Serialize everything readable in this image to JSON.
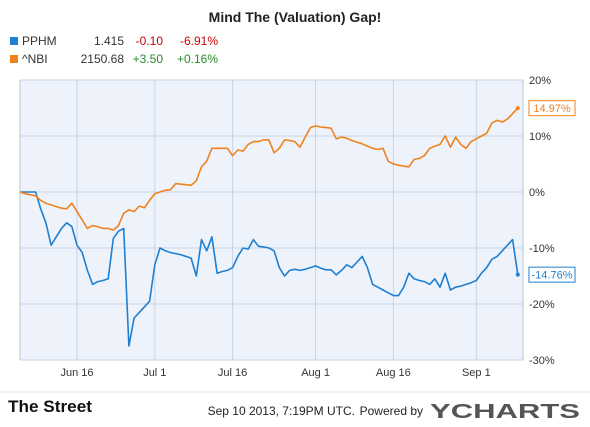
{
  "title": "Mind The (Valuation) Gap!",
  "legend": [
    {
      "name": "PPHM",
      "value": "1.415",
      "change": "-0.10",
      "pct": "-6.91%",
      "color": "#1f7fd0",
      "change_color": "#cc0000"
    },
    {
      "name": "^NBI",
      "value": "2150.68",
      "change": "+3.50",
      "pct": "+0.16%",
      "color": "#f0821e",
      "change_color": "#2a8a2a"
    }
  ],
  "footer": {
    "brand": "The Street",
    "timestamp": "Sep 10 2013, 7:19PM UTC.",
    "powered_by": "Powered by",
    "ycharts": "YCHARTS"
  },
  "colors": {
    "plot_bg": "#eef3fb",
    "grid": "#c8d3e6",
    "pphm": "#1f7fd0",
    "nbi": "#f0821e"
  },
  "chart_data": {
    "type": "line",
    "title": "Mind The (Valuation) Gap!",
    "xlabel": "",
    "ylabel": "",
    "ylim": [
      -30,
      20
    ],
    "yticks": [
      20,
      10,
      0,
      -10,
      -20,
      -30
    ],
    "ytick_labels": [
      "20%",
      "10%",
      "0%",
      "-10%",
      "-20%",
      "-30%"
    ],
    "xlim": [
      "2013-06-05",
      "2013-09-10"
    ],
    "xticks": [
      "2013-06-16",
      "2013-07-01",
      "2013-07-16",
      "2013-08-01",
      "2013-08-16",
      "2013-09-01"
    ],
    "xtick_labels": [
      "Jun 16",
      "Jul 1",
      "Jul 16",
      "Aug 1",
      "Aug 16",
      "Sep 1"
    ],
    "grid": true,
    "legend_position": "top-left",
    "series": [
      {
        "name": "PPHM",
        "end_label": "-14.76%",
        "points": [
          [
            "2013-06-05",
            0.0
          ],
          [
            "2013-06-06",
            0.0
          ],
          [
            "2013-06-07",
            0.0
          ],
          [
            "2013-06-08",
            0.0
          ],
          [
            "2013-06-09",
            -3.0
          ],
          [
            "2013-06-10",
            -5.5
          ],
          [
            "2013-06-11",
            -9.5
          ],
          [
            "2013-06-12",
            -8.0
          ],
          [
            "2013-06-13",
            -6.5
          ],
          [
            "2013-06-14",
            -5.5
          ],
          [
            "2013-06-15",
            -6.2
          ],
          [
            "2013-06-16",
            -9.5
          ],
          [
            "2013-06-17",
            -10.8
          ],
          [
            "2013-06-18",
            -14.0
          ],
          [
            "2013-06-19",
            -16.5
          ],
          [
            "2013-06-20",
            -16.0
          ],
          [
            "2013-06-21",
            -15.8
          ],
          [
            "2013-06-22",
            -15.5
          ],
          [
            "2013-06-23",
            -8.3
          ],
          [
            "2013-06-24",
            -7.0
          ],
          [
            "2013-06-25",
            -6.5
          ],
          [
            "2013-06-26",
            -27.5
          ],
          [
            "2013-06-27",
            -22.5
          ],
          [
            "2013-06-28",
            -21.5
          ],
          [
            "2013-06-29",
            -20.5
          ],
          [
            "2013-06-30",
            -19.5
          ],
          [
            "2013-07-01",
            -13.0
          ],
          [
            "2013-07-02",
            -10.0
          ],
          [
            "2013-07-03",
            -10.5
          ],
          [
            "2013-07-04",
            -10.8
          ],
          [
            "2013-07-05",
            -11.0
          ],
          [
            "2013-07-06",
            -11.2
          ],
          [
            "2013-07-07",
            -11.5
          ],
          [
            "2013-07-08",
            -11.8
          ],
          [
            "2013-07-09",
            -15.0
          ],
          [
            "2013-07-10",
            -8.5
          ],
          [
            "2013-07-11",
            -10.5
          ],
          [
            "2013-07-12",
            -8.0
          ],
          [
            "2013-07-13",
            -14.5
          ],
          [
            "2013-07-14",
            -14.2
          ],
          [
            "2013-07-15",
            -14.0
          ],
          [
            "2013-07-16",
            -13.5
          ],
          [
            "2013-07-17",
            -11.5
          ],
          [
            "2013-07-18",
            -10.0
          ],
          [
            "2013-07-19",
            -10.2
          ],
          [
            "2013-07-20",
            -8.5
          ],
          [
            "2013-07-21",
            -9.7
          ],
          [
            "2013-07-22",
            -9.8
          ],
          [
            "2013-07-23",
            -10.0
          ],
          [
            "2013-07-24",
            -10.5
          ],
          [
            "2013-07-25",
            -13.5
          ],
          [
            "2013-07-26",
            -15.0
          ],
          [
            "2013-07-27",
            -14.0
          ],
          [
            "2013-07-28",
            -13.8
          ],
          [
            "2013-07-29",
            -14.0
          ],
          [
            "2013-07-30",
            -13.8
          ],
          [
            "2013-07-31",
            -13.5
          ],
          [
            "2013-08-01",
            -13.2
          ],
          [
            "2013-08-02",
            -13.6
          ],
          [
            "2013-08-03",
            -13.9
          ],
          [
            "2013-08-04",
            -13.9
          ],
          [
            "2013-08-05",
            -14.8
          ],
          [
            "2013-08-06",
            -14.0
          ],
          [
            "2013-08-07",
            -13.0
          ],
          [
            "2013-08-08",
            -13.5
          ],
          [
            "2013-08-09",
            -12.5
          ],
          [
            "2013-08-10",
            -11.5
          ],
          [
            "2013-08-11",
            -13.5
          ],
          [
            "2013-08-12",
            -16.5
          ],
          [
            "2013-08-13",
            -17.0
          ],
          [
            "2013-08-14",
            -17.5
          ],
          [
            "2013-08-15",
            -18.0
          ],
          [
            "2013-08-16",
            -18.5
          ],
          [
            "2013-08-17",
            -18.5
          ],
          [
            "2013-08-18",
            -17.0
          ],
          [
            "2013-08-19",
            -14.5
          ],
          [
            "2013-08-20",
            -15.5
          ],
          [
            "2013-08-21",
            -15.8
          ],
          [
            "2013-08-22",
            -16.0
          ],
          [
            "2013-08-23",
            -16.5
          ],
          [
            "2013-08-24",
            -15.5
          ],
          [
            "2013-08-25",
            -17.0
          ],
          [
            "2013-08-26",
            -14.5
          ],
          [
            "2013-08-27",
            -17.5
          ],
          [
            "2013-08-28",
            -17.0
          ],
          [
            "2013-08-29",
            -16.8
          ],
          [
            "2013-08-30",
            -16.5
          ],
          [
            "2013-08-31",
            -16.2
          ],
          [
            "2013-09-01",
            -15.8
          ],
          [
            "2013-09-02",
            -14.5
          ],
          [
            "2013-09-03",
            -13.5
          ],
          [
            "2013-09-04",
            -12.0
          ],
          [
            "2013-09-05",
            -11.5
          ],
          [
            "2013-09-06",
            -10.5
          ],
          [
            "2013-09-07",
            -9.5
          ],
          [
            "2013-09-08",
            -8.5
          ],
          [
            "2013-09-09",
            -14.76
          ]
        ]
      },
      {
        "name": "^NBI",
        "end_label": "14.97%",
        "points": [
          [
            "2013-06-05",
            0.0
          ],
          [
            "2013-06-06",
            -0.3
          ],
          [
            "2013-06-07",
            -0.5
          ],
          [
            "2013-06-08",
            -0.7
          ],
          [
            "2013-06-09",
            -1.5
          ],
          [
            "2013-06-10",
            -2.0
          ],
          [
            "2013-06-11",
            -2.3
          ],
          [
            "2013-06-12",
            -2.6
          ],
          [
            "2013-06-13",
            -2.9
          ],
          [
            "2013-06-14",
            -3.0
          ],
          [
            "2013-06-15",
            -2.0
          ],
          [
            "2013-06-16",
            -3.5
          ],
          [
            "2013-06-17",
            -5.0
          ],
          [
            "2013-06-18",
            -6.5
          ],
          [
            "2013-06-19",
            -6.0
          ],
          [
            "2013-06-20",
            -6.2
          ],
          [
            "2013-06-21",
            -6.5
          ],
          [
            "2013-06-22",
            -6.5
          ],
          [
            "2013-06-23",
            -6.8
          ],
          [
            "2013-06-24",
            -6.0
          ],
          [
            "2013-06-25",
            -3.8
          ],
          [
            "2013-06-26",
            -3.2
          ],
          [
            "2013-06-27",
            -3.5
          ],
          [
            "2013-06-28",
            -2.5
          ],
          [
            "2013-06-29",
            -2.8
          ],
          [
            "2013-06-30",
            -1.5
          ],
          [
            "2013-07-01",
            -0.3
          ],
          [
            "2013-07-02",
            0.0
          ],
          [
            "2013-07-03",
            0.3
          ],
          [
            "2013-07-04",
            0.4
          ],
          [
            "2013-07-05",
            1.5
          ],
          [
            "2013-07-06",
            1.4
          ],
          [
            "2013-07-07",
            1.3
          ],
          [
            "2013-07-08",
            1.2
          ],
          [
            "2013-07-09",
            2.0
          ],
          [
            "2013-07-10",
            4.5
          ],
          [
            "2013-07-11",
            5.5
          ],
          [
            "2013-07-12",
            7.8
          ],
          [
            "2013-07-13",
            7.8
          ],
          [
            "2013-07-14",
            7.8
          ],
          [
            "2013-07-15",
            7.8
          ],
          [
            "2013-07-16",
            6.5
          ],
          [
            "2013-07-17",
            7.5
          ],
          [
            "2013-07-18",
            7.3
          ],
          [
            "2013-07-19",
            8.5
          ],
          [
            "2013-07-20",
            9.0
          ],
          [
            "2013-07-21",
            9.0
          ],
          [
            "2013-07-22",
            9.3
          ],
          [
            "2013-07-23",
            9.3
          ],
          [
            "2013-07-24",
            7.0
          ],
          [
            "2013-07-25",
            7.8
          ],
          [
            "2013-07-26",
            9.3
          ],
          [
            "2013-07-27",
            9.2
          ],
          [
            "2013-07-28",
            9.0
          ],
          [
            "2013-07-29",
            8.0
          ],
          [
            "2013-07-30",
            9.8
          ],
          [
            "2013-07-31",
            11.5
          ],
          [
            "2013-08-01",
            11.8
          ],
          [
            "2013-08-02",
            11.6
          ],
          [
            "2013-08-03",
            11.5
          ],
          [
            "2013-08-04",
            11.4
          ],
          [
            "2013-08-05",
            9.5
          ],
          [
            "2013-08-06",
            9.8
          ],
          [
            "2013-08-07",
            9.6
          ],
          [
            "2013-08-08",
            9.2
          ],
          [
            "2013-08-09",
            8.9
          ],
          [
            "2013-08-10",
            8.6
          ],
          [
            "2013-08-11",
            8.2
          ],
          [
            "2013-08-12",
            7.8
          ],
          [
            "2013-08-13",
            7.6
          ],
          [
            "2013-08-14",
            7.8
          ],
          [
            "2013-08-15",
            5.5
          ],
          [
            "2013-08-16",
            5.0
          ],
          [
            "2013-08-17",
            4.8
          ],
          [
            "2013-08-18",
            4.6
          ],
          [
            "2013-08-19",
            4.5
          ],
          [
            "2013-08-20",
            5.8
          ],
          [
            "2013-08-21",
            6.0
          ],
          [
            "2013-08-22",
            6.5
          ],
          [
            "2013-08-23",
            7.8
          ],
          [
            "2013-08-24",
            8.2
          ],
          [
            "2013-08-25",
            8.5
          ],
          [
            "2013-08-26",
            10.0
          ],
          [
            "2013-08-27",
            8.0
          ],
          [
            "2013-08-28",
            9.8
          ],
          [
            "2013-08-29",
            8.5
          ],
          [
            "2013-08-30",
            7.8
          ],
          [
            "2013-08-31",
            9.0
          ],
          [
            "2013-09-01",
            9.5
          ],
          [
            "2013-09-02",
            10.0
          ],
          [
            "2013-09-03",
            10.5
          ],
          [
            "2013-09-04",
            12.3
          ],
          [
            "2013-09-05",
            12.8
          ],
          [
            "2013-09-06",
            12.5
          ],
          [
            "2013-09-07",
            13.0
          ],
          [
            "2013-09-08",
            14.0
          ],
          [
            "2013-09-09",
            14.97
          ]
        ]
      }
    ]
  }
}
